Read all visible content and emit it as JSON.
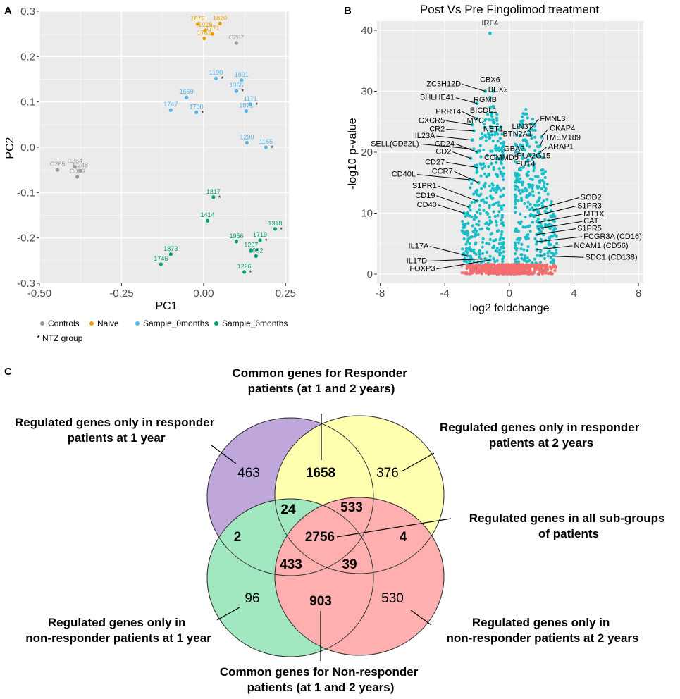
{
  "panels": {
    "a": "A",
    "b": "B",
    "c": "C"
  },
  "chart_data": [
    {
      "type": "scatter",
      "panel": "A",
      "xlabel": "PC1",
      "ylabel": "PC2",
      "xlim": [
        -0.5,
        0.26
      ],
      "ylim": [
        -0.3,
        0.3
      ],
      "xticks": [
        "-0.50",
        "-0.25",
        "0.00",
        "0.25"
      ],
      "xtick_values": [
        -0.5,
        -0.25,
        0.0,
        0.25
      ],
      "yticks": [
        "0.3",
        "0.2",
        "0.1",
        "0.0",
        "-0.1",
        "-0.2",
        "-0.3"
      ],
      "ytick_values": [
        0.3,
        0.2,
        0.1,
        0.0,
        -0.1,
        -0.2,
        -0.3
      ],
      "colors": {
        "Controls": "#999999",
        "Naive": "#E69F00",
        "Sample_0months": "#56B4E9",
        "Sample_6months": "#009E73"
      },
      "legend": [
        {
          "label": "Controls",
          "color": "#999999"
        },
        {
          "label": "Naive",
          "color": "#E69F00"
        },
        {
          "label": "Sample_0months",
          "color": "#56B4E9"
        },
        {
          "label": "Sample_6months",
          "color": "#009E73"
        }
      ],
      "legend_note": "* NTZ group",
      "points": [
        {
          "label": "1879",
          "group": "Naive",
          "x": -0.018,
          "y": 0.272,
          "ntz": false
        },
        {
          "label": "1820",
          "group": "Naive",
          "x": 0.05,
          "y": 0.273,
          "ntz": false
        },
        {
          "label": "1928",
          "group": "Naive",
          "x": 0.005,
          "y": 0.258,
          "ntz": false
        },
        {
          "label": "1771",
          "group": "Naive",
          "x": 0.027,
          "y": 0.25,
          "ntz": false
        },
        {
          "label": "1762",
          "group": "Naive",
          "x": 0.002,
          "y": 0.24,
          "ntz": false
        },
        {
          "label": "C267",
          "group": "Controls",
          "x": 0.1,
          "y": 0.23,
          "ntz": false
        },
        {
          "label": "1190",
          "group": "Sample_0months",
          "x": 0.038,
          "y": 0.152,
          "ntz": true
        },
        {
          "label": "1891",
          "group": "Sample_0months",
          "x": 0.116,
          "y": 0.148,
          "ntz": false
        },
        {
          "label": "1355",
          "group": "Sample_0months",
          "x": 0.1,
          "y": 0.124,
          "ntz": true
        },
        {
          "label": "1669",
          "group": "Sample_0months",
          "x": -0.052,
          "y": 0.11,
          "ntz": false
        },
        {
          "label": "1171",
          "group": "Sample_0months",
          "x": 0.143,
          "y": 0.095,
          "ntz": true
        },
        {
          "label": "1747",
          "group": "Sample_0months",
          "x": -0.1,
          "y": 0.082,
          "ntz": false
        },
        {
          "label": "1700",
          "group": "Sample_0months",
          "x": -0.022,
          "y": 0.077,
          "ntz": true
        },
        {
          "label": "1871",
          "group": "Sample_0months",
          "x": 0.13,
          "y": 0.08,
          "ntz": false
        },
        {
          "label": "1290",
          "group": "Sample_0months",
          "x": 0.132,
          "y": 0.01,
          "ntz": false
        },
        {
          "label": "1165",
          "group": "Sample_0months",
          "x": 0.19,
          "y": 0.0,
          "ntz": true
        },
        {
          "label": "C264",
          "group": "Controls",
          "x": -0.392,
          "y": -0.043,
          "ntz": false
        },
        {
          "label": "C265",
          "group": "Controls",
          "x": -0.445,
          "y": -0.05,
          "ntz": false
        },
        {
          "label": "C248",
          "group": "Controls",
          "x": -0.375,
          "y": -0.052,
          "ntz": false
        },
        {
          "label": "C009",
          "group": "Controls",
          "x": -0.385,
          "y": -0.065,
          "ntz": false
        },
        {
          "label": "1817",
          "group": "Sample_6months",
          "x": 0.03,
          "y": -0.11,
          "ntz": true
        },
        {
          "label": "1414",
          "group": "Sample_6months",
          "x": 0.012,
          "y": -0.162,
          "ntz": false
        },
        {
          "label": "1318",
          "group": "Sample_6months",
          "x": 0.218,
          "y": -0.18,
          "ntz": true
        },
        {
          "label": "1956",
          "group": "Sample_6months",
          "x": 0.1,
          "y": -0.208,
          "ntz": false
        },
        {
          "label": "1719",
          "group": "Sample_6months",
          "x": 0.172,
          "y": -0.205,
          "ntz": true
        },
        {
          "label": "1297",
          "group": "Sample_6months",
          "x": 0.145,
          "y": -0.228,
          "ntz": true
        },
        {
          "label": "1992",
          "group": "Sample_6months",
          "x": 0.16,
          "y": -0.24,
          "ntz": false
        },
        {
          "label": "1873",
          "group": "Sample_6months",
          "x": -0.1,
          "y": -0.236,
          "ntz": false
        },
        {
          "label": "1746",
          "group": "Sample_6months",
          "x": -0.13,
          "y": -0.258,
          "ntz": false
        },
        {
          "label": "1296",
          "group": "Sample_6months",
          "x": 0.124,
          "y": -0.275,
          "ntz": true
        }
      ]
    },
    {
      "type": "scatter",
      "panel": "B",
      "title": "Post Vs Pre Fingolimod treatment",
      "xlabel": "log2 foldchange",
      "ylabel": "-log10 p-value",
      "xlim": [
        -8.2,
        8.3
      ],
      "ylim": [
        -1.5,
        41.5
      ],
      "xticks": [
        "-8",
        "-4",
        "0",
        "4",
        "8"
      ],
      "xtick_values": [
        -8,
        -4,
        0,
        4,
        8
      ],
      "yticks": [
        "40",
        "30",
        "20",
        "10",
        "0"
      ],
      "ytick_values": [
        40,
        30,
        20,
        10,
        0
      ],
      "colors": {
        "significant": "#17BEC8",
        "nonsignificant": "#F26D6D"
      },
      "genes": [
        {
          "label": "IRF4",
          "x": -1.2,
          "y": 39.5,
          "lx": -1.2,
          "ly": 40.8,
          "leader": false
        },
        {
          "label": "ZC3H12D",
          "x": -1.5,
          "y": 30.0,
          "lx": -3.0,
          "ly": 30.8,
          "leader": true
        },
        {
          "label": "CBX6",
          "x": -1.0,
          "y": 30.0,
          "lx": -1.2,
          "ly": 31.5,
          "leader": false
        },
        {
          "label": "BEX2",
          "x": -1.2,
          "y": 29.0,
          "lx": -0.7,
          "ly": 29.9,
          "leader": false
        },
        {
          "label": "BHLHE41",
          "x": -2.0,
          "y": 28.0,
          "lx": -3.4,
          "ly": 28.6,
          "leader": true
        },
        {
          "label": "RGMB",
          "x": -1.0,
          "y": 27.5,
          "lx": -1.5,
          "ly": 28.2,
          "leader": false
        },
        {
          "label": "PRRT4",
          "x": -2.0,
          "y": 25.5,
          "lx": -3.0,
          "ly": 26.3,
          "leader": true
        },
        {
          "label": "BICDL1",
          "x": -1.1,
          "y": 26.5,
          "lx": -1.6,
          "ly": 26.5,
          "leader": false
        },
        {
          "label": "CXCR5",
          "x": -2.3,
          "y": 24.5,
          "lx": -4.0,
          "ly": 24.8,
          "leader": true
        },
        {
          "label": "MYC",
          "x": -1.5,
          "y": 24.0,
          "lx": -2.1,
          "ly": 24.8,
          "leader": false
        },
        {
          "label": "CR2",
          "x": -2.2,
          "y": 23.5,
          "lx": -4.0,
          "ly": 23.4,
          "leader": true
        },
        {
          "label": "NET1",
          "x": -1.3,
          "y": 23.0,
          "lx": -1.0,
          "ly": 23.4,
          "leader": false
        },
        {
          "label": "IL23A",
          "x": -2.3,
          "y": 22.0,
          "lx": -4.6,
          "ly": 22.3,
          "leader": true
        },
        {
          "label": "SELL(CD62L)",
          "x": -2.2,
          "y": 20.5,
          "lx": -5.6,
          "ly": 21.0,
          "leader": true
        },
        {
          "label": "CD24",
          "x": -2.0,
          "y": 20.0,
          "lx": -3.4,
          "ly": 21.0,
          "leader": true
        },
        {
          "label": "CD2",
          "x": -2.4,
          "y": 19.0,
          "lx": -3.6,
          "ly": 19.7,
          "leader": true
        },
        {
          "label": "CD27",
          "x": -2.0,
          "y": 17.5,
          "lx": -4.0,
          "ly": 18.0,
          "leader": true
        },
        {
          "label": "CD40L",
          "x": -2.5,
          "y": 15.5,
          "lx": -5.8,
          "ly": 16.0,
          "leader": true
        },
        {
          "label": "CCR7",
          "x": -1.9,
          "y": 15.0,
          "lx": -3.5,
          "ly": 16.5,
          "leader": true
        },
        {
          "label": "S1PR1",
          "x": -2.0,
          "y": 12.0,
          "lx": -4.5,
          "ly": 14.1,
          "leader": true
        },
        {
          "label": "CD19",
          "x": -2.5,
          "y": 11.0,
          "lx": -4.6,
          "ly": 12.5,
          "leader": true
        },
        {
          "label": "CD40",
          "x": -2.8,
          "y": 10.0,
          "lx": -4.5,
          "ly": 11.0,
          "leader": true
        },
        {
          "label": "IL17A",
          "x": -2.6,
          "y": 3.0,
          "lx": -5.0,
          "ly": 4.2,
          "leader": true
        },
        {
          "label": "IL17D",
          "x": -1.5,
          "y": 2.5,
          "lx": -5.1,
          "ly": 1.8,
          "leader": true
        },
        {
          "label": "FOXP3",
          "x": -1.2,
          "y": 2.3,
          "lx": -4.6,
          "ly": 0.5,
          "leader": true
        },
        {
          "label": "FMNL3",
          "x": 1.2,
          "y": 23.5,
          "lx": 1.9,
          "ly": 25.1,
          "leader": true
        },
        {
          "label": "LIN37",
          "x": 1.0,
          "y": 22.0,
          "lx": 0.8,
          "ly": 23.8,
          "leader": false
        },
        {
          "label": "CKAP4",
          "x": 2.0,
          "y": 22.5,
          "lx": 2.5,
          "ly": 23.5,
          "leader": true
        },
        {
          "label": "BTN2A1",
          "x": 0.9,
          "y": 22.0,
          "lx": 0.5,
          "ly": 22.6,
          "leader": false
        },
        {
          "label": "TMEM189",
          "x": 1.9,
          "y": 21.0,
          "lx": 2.2,
          "ly": 22.0,
          "leader": true
        },
        {
          "label": "ARAP1",
          "x": 1.9,
          "y": 20.0,
          "lx": 2.4,
          "ly": 20.5,
          "leader": true
        },
        {
          "label": "GBA2",
          "x": 0.9,
          "y": 20.5,
          "lx": 0.3,
          "ly": 20.2,
          "leader": false
        },
        {
          "label": "PLA2G15",
          "x": 1.2,
          "y": 19.5,
          "lx": 1.5,
          "ly": 19.0,
          "leader": false
        },
        {
          "label": "COMMD5",
          "x": 0.8,
          "y": 19.0,
          "lx": -0.5,
          "ly": 18.7,
          "leader": false
        },
        {
          "label": "FUT4",
          "x": 1.1,
          "y": 18.5,
          "lx": 1.0,
          "ly": 17.7,
          "leader": false
        },
        {
          "label": "SOD2",
          "x": 1.5,
          "y": 10.5,
          "lx": 4.4,
          "ly": 12.2,
          "leader": true
        },
        {
          "label": "S1PR3",
          "x": 1.5,
          "y": 9.5,
          "lx": 4.2,
          "ly": 10.8,
          "leader": true
        },
        {
          "label": "MT1X",
          "x": 1.8,
          "y": 8.5,
          "lx": 4.6,
          "ly": 9.5,
          "leader": true
        },
        {
          "label": "CAT",
          "x": 1.8,
          "y": 7.5,
          "lx": 4.6,
          "ly": 8.3,
          "leader": true
        },
        {
          "label": "S1PR5",
          "x": 1.7,
          "y": 6.5,
          "lx": 4.2,
          "ly": 7.1,
          "leader": true
        },
        {
          "label": "FCGR3A (CD16)",
          "x": 1.7,
          "y": 5.3,
          "lx": 4.6,
          "ly": 5.8,
          "leader": true
        },
        {
          "label": "NCAM1 (CD56)",
          "x": 1.7,
          "y": 4.0,
          "lx": 4.0,
          "ly": 4.3,
          "leader": true
        },
        {
          "label": "SDC1 (CD138)",
          "x": 1.9,
          "y": 3.0,
          "lx": 4.7,
          "ly": 2.4,
          "leader": true
        }
      ]
    }
  ],
  "venn": {
    "sets": [
      {
        "name": "responder-1y",
        "color": "#8C60C1"
      },
      {
        "name": "responder-2y",
        "color": "#FFFF6E"
      },
      {
        "name": "nonresponder-1y",
        "color": "#55D48C"
      },
      {
        "name": "nonresponder-2y",
        "color": "#FF6E6E"
      }
    ],
    "regions": {
      "r1_only": "463",
      "r2_only": "376",
      "n1_only": "96",
      "n2_only": "530",
      "common_responder": "1658",
      "common_nonresponder": "903",
      "r1_r2_n1": "24",
      "r1_r2_n2": "533",
      "r1_n1": "2",
      "r2_n2": "4",
      "all": "2756",
      "r1_n1_n2": "433",
      "r2_n1_n2": "39"
    },
    "labels": {
      "common_responder": [
        "Common genes for Responder",
        "patients (at 1 and 2 years)"
      ],
      "r1_only": [
        "Regulated genes only in responder",
        "patients at 1 year"
      ],
      "r2_only": [
        "Regulated genes only in responder",
        "patients at 2 years"
      ],
      "all": [
        "Regulated genes in all sub-groups",
        "of patients"
      ],
      "n1_only": [
        "Regulated genes only in",
        "non-responder patients at 1 year"
      ],
      "n2_only": [
        "Regulated genes only in",
        "non-responder patients at 2 years"
      ],
      "common_nonresponder": [
        "Common genes for Non-responder",
        "patients (at 1 and 2 years)"
      ]
    }
  }
}
